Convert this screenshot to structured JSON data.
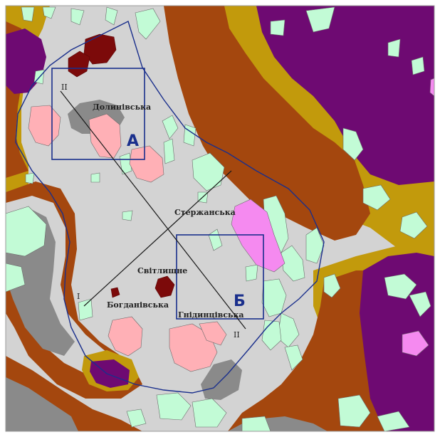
{
  "map": {
    "colors": {
      "light_gray": "#d3d3d3",
      "dark_gray": "#8a8a8a",
      "brown": "#a4470e",
      "olive": "#c29a0c",
      "purple": "#6e0a72",
      "mint": "#c2fbd6",
      "pink": "#ffb0b6",
      "magenta": "#f58af0",
      "maroon": "#7c0a0a",
      "outline_blue": "#1a2f8c",
      "line_black": "#1a1a1a"
    },
    "deposits": {
      "dolynska": "Долинівська",
      "sterzhanska": "Стержанська",
      "svitlyshche": "Світлищне",
      "bohdanivska": "Богданівська",
      "hnidyntsivska": "Гнідинцівська"
    },
    "boxes": {
      "a": "А",
      "b": "Б"
    },
    "profiles": {
      "i_ii_start": "I",
      "i_ii_end": "II",
      "ii_start": "II",
      "ii_end": "II"
    }
  }
}
